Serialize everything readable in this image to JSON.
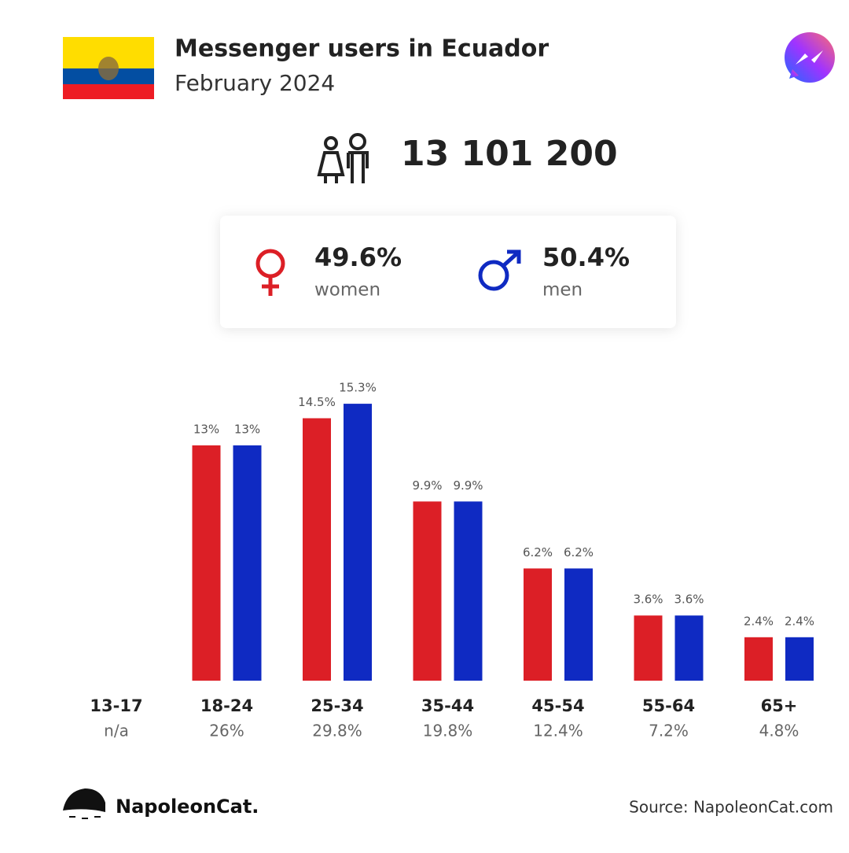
{
  "header": {
    "title": "Messenger users in Ecuador",
    "subtitle": "February 2024"
  },
  "total_users": "13 101 200",
  "gender": [
    {
      "value_label": "49.6%",
      "name": "women"
    },
    {
      "value_label": "50.4%",
      "name": "men"
    }
  ],
  "chart_data": {
    "type": "bar",
    "categories": [
      "13-17",
      "18-24",
      "25-34",
      "35-44",
      "45-54",
      "55-64",
      "65+"
    ],
    "series": [
      {
        "name": "women",
        "color": "#dc1f26",
        "values": [
          null,
          13,
          14.5,
          9.9,
          6.2,
          3.6,
          2.4
        ],
        "value_labels": [
          null,
          "13%",
          "14.5%",
          "9.9%",
          "6.2%",
          "3.6%",
          "2.4%"
        ]
      },
      {
        "name": "men",
        "color": "#0f2ac2",
        "values": [
          null,
          13,
          15.3,
          9.9,
          6.2,
          3.6,
          2.4
        ],
        "value_labels": [
          null,
          "13%",
          "15.3%",
          "9.9%",
          "6.2%",
          "3.6%",
          "2.4%"
        ]
      }
    ],
    "category_totals": {
      "values": [
        null,
        26,
        29.8,
        19.8,
        12.4,
        7.2,
        4.8
      ],
      "value_labels": [
        "n/a",
        "26%",
        "29.8%",
        "19.8%",
        "12.4%",
        "7.2%",
        "4.8%"
      ]
    }
  },
  "footer": {
    "brand": "NapoleonCat.",
    "source": "Source: NapoleonCat.com"
  }
}
